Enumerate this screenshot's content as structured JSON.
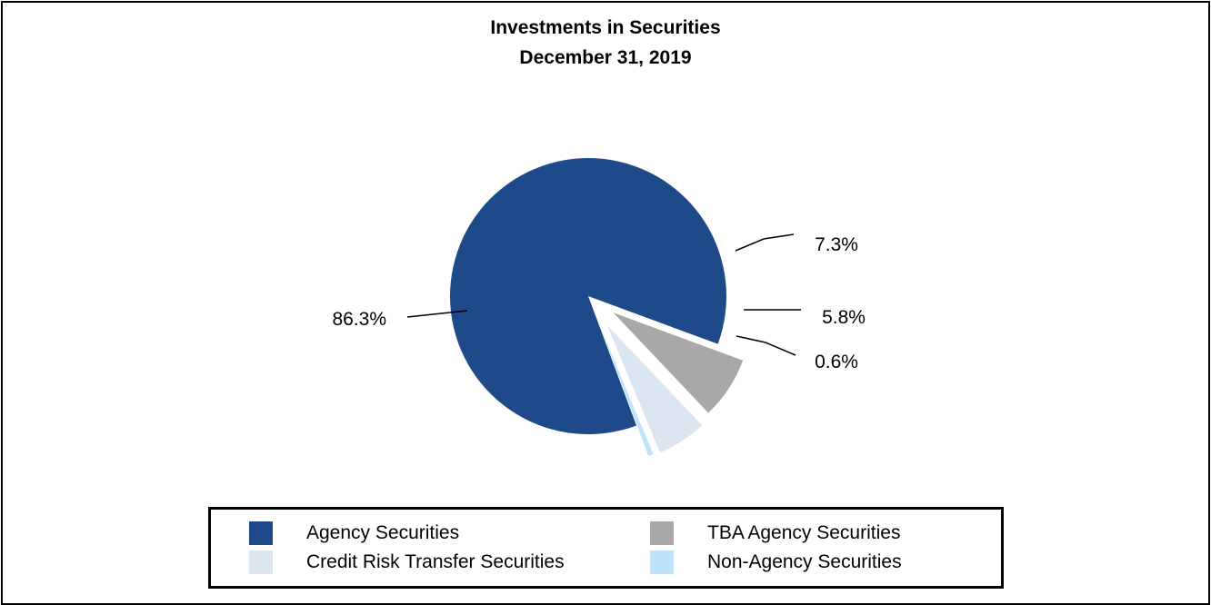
{
  "chart_data": {
    "type": "pie",
    "title": "Investments in Securities",
    "subtitle": "December 31, 2019",
    "series": [
      {
        "name": "Agency Securities",
        "value": 86.3,
        "label": "86.3%",
        "color": "#1f4a8a"
      },
      {
        "name": "TBA Agency Securities",
        "value": 7.3,
        "label": "7.3%",
        "color": "#a8a8a8"
      },
      {
        "name": "Credit Risk Transfer Securities",
        "value": 5.8,
        "label": "5.8%",
        "color": "#dce6f1"
      },
      {
        "name": "Non-Agency Securities",
        "value": 0.6,
        "label": "0.6%",
        "color": "#bde4fb"
      }
    ],
    "legend_position": "bottom"
  }
}
